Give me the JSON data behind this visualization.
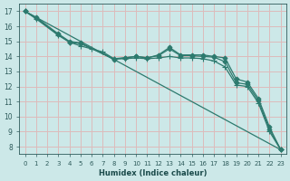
{
  "xlabel": "Humidex (Indice chaleur)",
  "bg_color": "#cce8e8",
  "grid_color": "#ddbbbb",
  "line_color": "#2d7a6e",
  "xlim": [
    -0.5,
    23.5
  ],
  "ylim": [
    7.5,
    17.5
  ],
  "yticks": [
    8,
    9,
    10,
    11,
    12,
    13,
    14,
    15,
    16,
    17
  ],
  "xticks": [
    0,
    1,
    2,
    3,
    4,
    5,
    6,
    7,
    8,
    9,
    10,
    11,
    12,
    13,
    14,
    15,
    16,
    17,
    18,
    19,
    20,
    21,
    22,
    23
  ],
  "series": [
    {
      "x": [
        0,
        1,
        3,
        4,
        5,
        8,
        9,
        10,
        11,
        12,
        13,
        14,
        15,
        16,
        17,
        18,
        19,
        20,
        21,
        22,
        23
      ],
      "y": [
        17.0,
        16.6,
        15.5,
        15.0,
        14.9,
        13.8,
        13.9,
        14.0,
        13.9,
        14.1,
        14.6,
        14.1,
        14.1,
        14.1,
        14.0,
        13.9,
        12.5,
        12.3,
        11.2,
        9.3,
        7.8
      ],
      "marker": "D",
      "ms": 2.5,
      "lw": 0.9
    },
    {
      "x": [
        0,
        1,
        3,
        4,
        5,
        6,
        7,
        8,
        9,
        10,
        11,
        12,
        13,
        14,
        15,
        16,
        17,
        18,
        19,
        20,
        21,
        22,
        23
      ],
      "y": [
        17.0,
        16.5,
        15.4,
        14.95,
        14.7,
        14.5,
        14.3,
        13.85,
        13.85,
        13.9,
        13.85,
        13.9,
        14.0,
        13.9,
        13.9,
        13.85,
        13.7,
        13.3,
        12.1,
        12.0,
        10.9,
        9.0,
        7.8
      ],
      "marker": "+",
      "ms": 4,
      "lw": 0.9
    },
    {
      "x": [
        0,
        23
      ],
      "y": [
        17.0,
        7.8
      ],
      "marker": null,
      "ms": 0,
      "lw": 0.9
    },
    {
      "x": [
        0,
        1,
        3,
        4,
        5,
        8,
        9,
        10,
        11,
        12,
        13,
        14,
        15,
        16,
        17,
        18,
        19,
        20,
        21,
        22,
        23
      ],
      "y": [
        17.0,
        16.55,
        15.45,
        14.95,
        14.85,
        13.85,
        13.92,
        14.0,
        13.92,
        14.05,
        14.5,
        14.05,
        14.05,
        14.0,
        13.95,
        13.65,
        12.25,
        12.15,
        11.05,
        9.15,
        7.82
      ],
      "marker": "D",
      "ms": 2.5,
      "lw": 0.9
    }
  ]
}
